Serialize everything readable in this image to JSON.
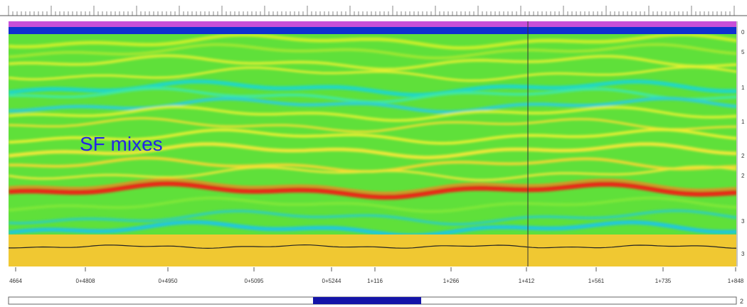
{
  "annotation": "SF mixes",
  "axis": {
    "bottom_labels": [
      "4664",
      "0+4808",
      "0+4950",
      "0+5095",
      "0+5244",
      "1+116",
      "1+266",
      "1+412",
      "1+561",
      "1+735",
      "1+848"
    ],
    "right_labels": [
      "0",
      "5",
      "1",
      "1",
      "2",
      "2",
      "3",
      "3"
    ]
  },
  "scrollbar": {
    "right_label": "2"
  }
}
